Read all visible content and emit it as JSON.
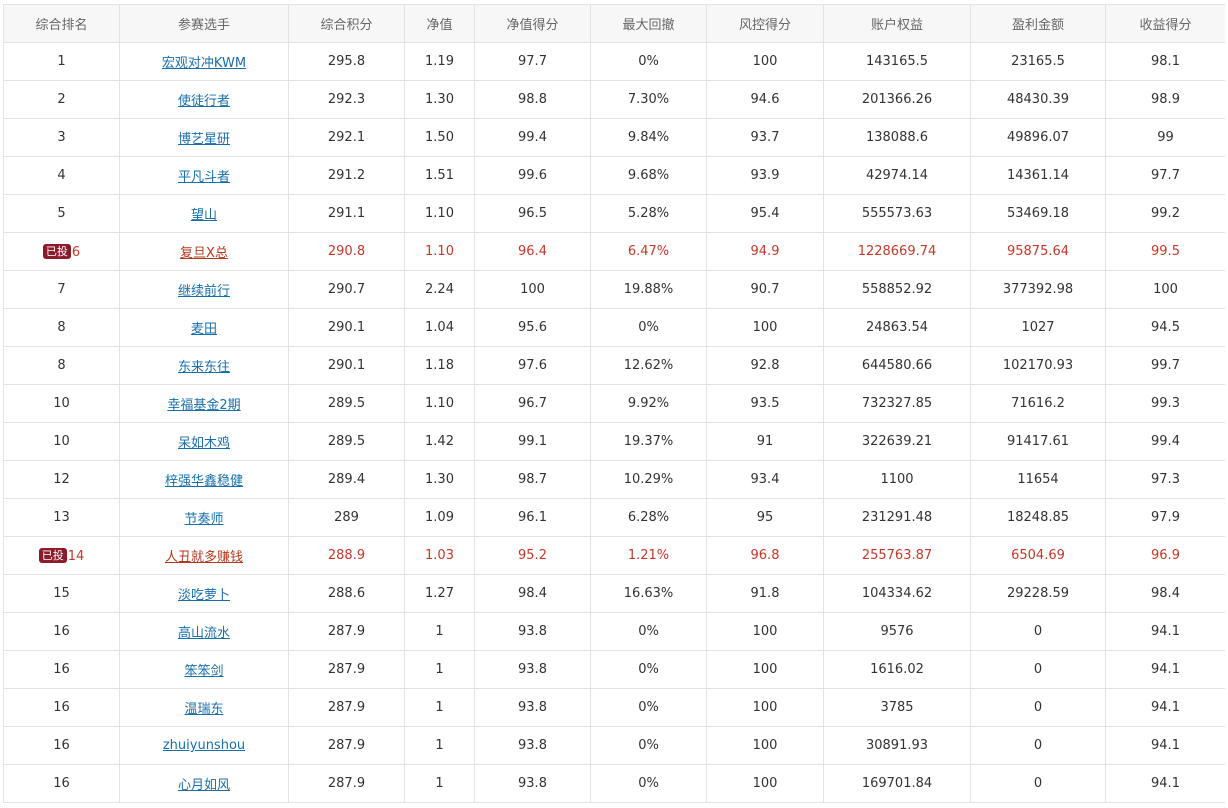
{
  "headers": [
    "综合排名",
    "参赛选手",
    "综合积分",
    "净值",
    "净值得分",
    "最大回撤",
    "风控得分",
    "账户权益",
    "盈利金额",
    "收益得分"
  ],
  "badge_label": "已投",
  "rows": [
    {
      "rank": "1",
      "player": "宏观对冲KWM",
      "score": "295.8",
      "nav": "1.19",
      "nav_score": "97.7",
      "drawdown": "0%",
      "risk_score": "100",
      "equity": "143165.5",
      "profit": "23165.5",
      "return_score": "98.1",
      "invested": false
    },
    {
      "rank": "2",
      "player": "使徒行者",
      "score": "292.3",
      "nav": "1.30",
      "nav_score": "98.8",
      "drawdown": "7.30%",
      "risk_score": "94.6",
      "equity": "201366.26",
      "profit": "48430.39",
      "return_score": "98.9",
      "invested": false
    },
    {
      "rank": "3",
      "player": "博艺星研",
      "score": "292.1",
      "nav": "1.50",
      "nav_score": "99.4",
      "drawdown": "9.84%",
      "risk_score": "93.7",
      "equity": "138088.6",
      "profit": "49896.07",
      "return_score": "99",
      "invested": false
    },
    {
      "rank": "4",
      "player": "平凡斗者",
      "score": "291.2",
      "nav": "1.51",
      "nav_score": "99.6",
      "drawdown": "9.68%",
      "risk_score": "93.9",
      "equity": "42974.14",
      "profit": "14361.14",
      "return_score": "97.7",
      "invested": false
    },
    {
      "rank": "5",
      "player": "望山",
      "score": "291.1",
      "nav": "1.10",
      "nav_score": "96.5",
      "drawdown": "5.28%",
      "risk_score": "95.4",
      "equity": "555573.63",
      "profit": "53469.18",
      "return_score": "99.2",
      "invested": false
    },
    {
      "rank": "6",
      "player": "复旦X总",
      "score": "290.8",
      "nav": "1.10",
      "nav_score": "96.4",
      "drawdown": "6.47%",
      "risk_score": "94.9",
      "equity": "1228669.74",
      "profit": "95875.64",
      "return_score": "99.5",
      "invested": true
    },
    {
      "rank": "7",
      "player": "继续前行",
      "score": "290.7",
      "nav": "2.24",
      "nav_score": "100",
      "drawdown": "19.88%",
      "risk_score": "90.7",
      "equity": "558852.92",
      "profit": "377392.98",
      "return_score": "100",
      "invested": false
    },
    {
      "rank": "8",
      "player": "麦田",
      "score": "290.1",
      "nav": "1.04",
      "nav_score": "95.6",
      "drawdown": "0%",
      "risk_score": "100",
      "equity": "24863.54",
      "profit": "1027",
      "return_score": "94.5",
      "invested": false
    },
    {
      "rank": "8",
      "player": "东来东往",
      "score": "290.1",
      "nav": "1.18",
      "nav_score": "97.6",
      "drawdown": "12.62%",
      "risk_score": "92.8",
      "equity": "644580.66",
      "profit": "102170.93",
      "return_score": "99.7",
      "invested": false
    },
    {
      "rank": "10",
      "player": "幸福基金2期",
      "score": "289.5",
      "nav": "1.10",
      "nav_score": "96.7",
      "drawdown": "9.92%",
      "risk_score": "93.5",
      "equity": "732327.85",
      "profit": "71616.2",
      "return_score": "99.3",
      "invested": false
    },
    {
      "rank": "10",
      "player": "呆如木鸡",
      "score": "289.5",
      "nav": "1.42",
      "nav_score": "99.1",
      "drawdown": "19.37%",
      "risk_score": "91",
      "equity": "322639.21",
      "profit": "91417.61",
      "return_score": "99.4",
      "invested": false
    },
    {
      "rank": "12",
      "player": "梓强华鑫稳健",
      "score": "289.4",
      "nav": "1.30",
      "nav_score": "98.7",
      "drawdown": "10.29%",
      "risk_score": "93.4",
      "equity": "1100",
      "profit": "11654",
      "return_score": "97.3",
      "invested": false
    },
    {
      "rank": "13",
      "player": "节奏师",
      "score": "289",
      "nav": "1.09",
      "nav_score": "96.1",
      "drawdown": "6.28%",
      "risk_score": "95",
      "equity": "231291.48",
      "profit": "18248.85",
      "return_score": "97.9",
      "invested": false
    },
    {
      "rank": "14",
      "player": "人丑就多赚钱",
      "score": "288.9",
      "nav": "1.03",
      "nav_score": "95.2",
      "drawdown": "1.21%",
      "risk_score": "96.8",
      "equity": "255763.87",
      "profit": "6504.69",
      "return_score": "96.9",
      "invested": true
    },
    {
      "rank": "15",
      "player": "淡吃萝卜",
      "score": "288.6",
      "nav": "1.27",
      "nav_score": "98.4",
      "drawdown": "16.63%",
      "risk_score": "91.8",
      "equity": "104334.62",
      "profit": "29228.59",
      "return_score": "98.4",
      "invested": false
    },
    {
      "rank": "16",
      "player": "高山流水",
      "score": "287.9",
      "nav": "1",
      "nav_score": "93.8",
      "drawdown": "0%",
      "risk_score": "100",
      "equity": "9576",
      "profit": "0",
      "return_score": "94.1",
      "invested": false
    },
    {
      "rank": "16",
      "player": "笨笨剑",
      "score": "287.9",
      "nav": "1",
      "nav_score": "93.8",
      "drawdown": "0%",
      "risk_score": "100",
      "equity": "1616.02",
      "profit": "0",
      "return_score": "94.1",
      "invested": false
    },
    {
      "rank": "16",
      "player": "温瑞东",
      "score": "287.9",
      "nav": "1",
      "nav_score": "93.8",
      "drawdown": "0%",
      "risk_score": "100",
      "equity": "3785",
      "profit": "0",
      "return_score": "94.1",
      "invested": false
    },
    {
      "rank": "16",
      "player": "zhuiyunshou",
      "score": "287.9",
      "nav": "1",
      "nav_score": "93.8",
      "drawdown": "0%",
      "risk_score": "100",
      "equity": "30891.93",
      "profit": "0",
      "return_score": "94.1",
      "invested": false
    },
    {
      "rank": "16",
      "player": "心月如风",
      "score": "287.9",
      "nav": "1",
      "nav_score": "93.8",
      "drawdown": "0%",
      "risk_score": "100",
      "equity": "169701.84",
      "profit": "0",
      "return_score": "94.1",
      "invested": false
    }
  ]
}
